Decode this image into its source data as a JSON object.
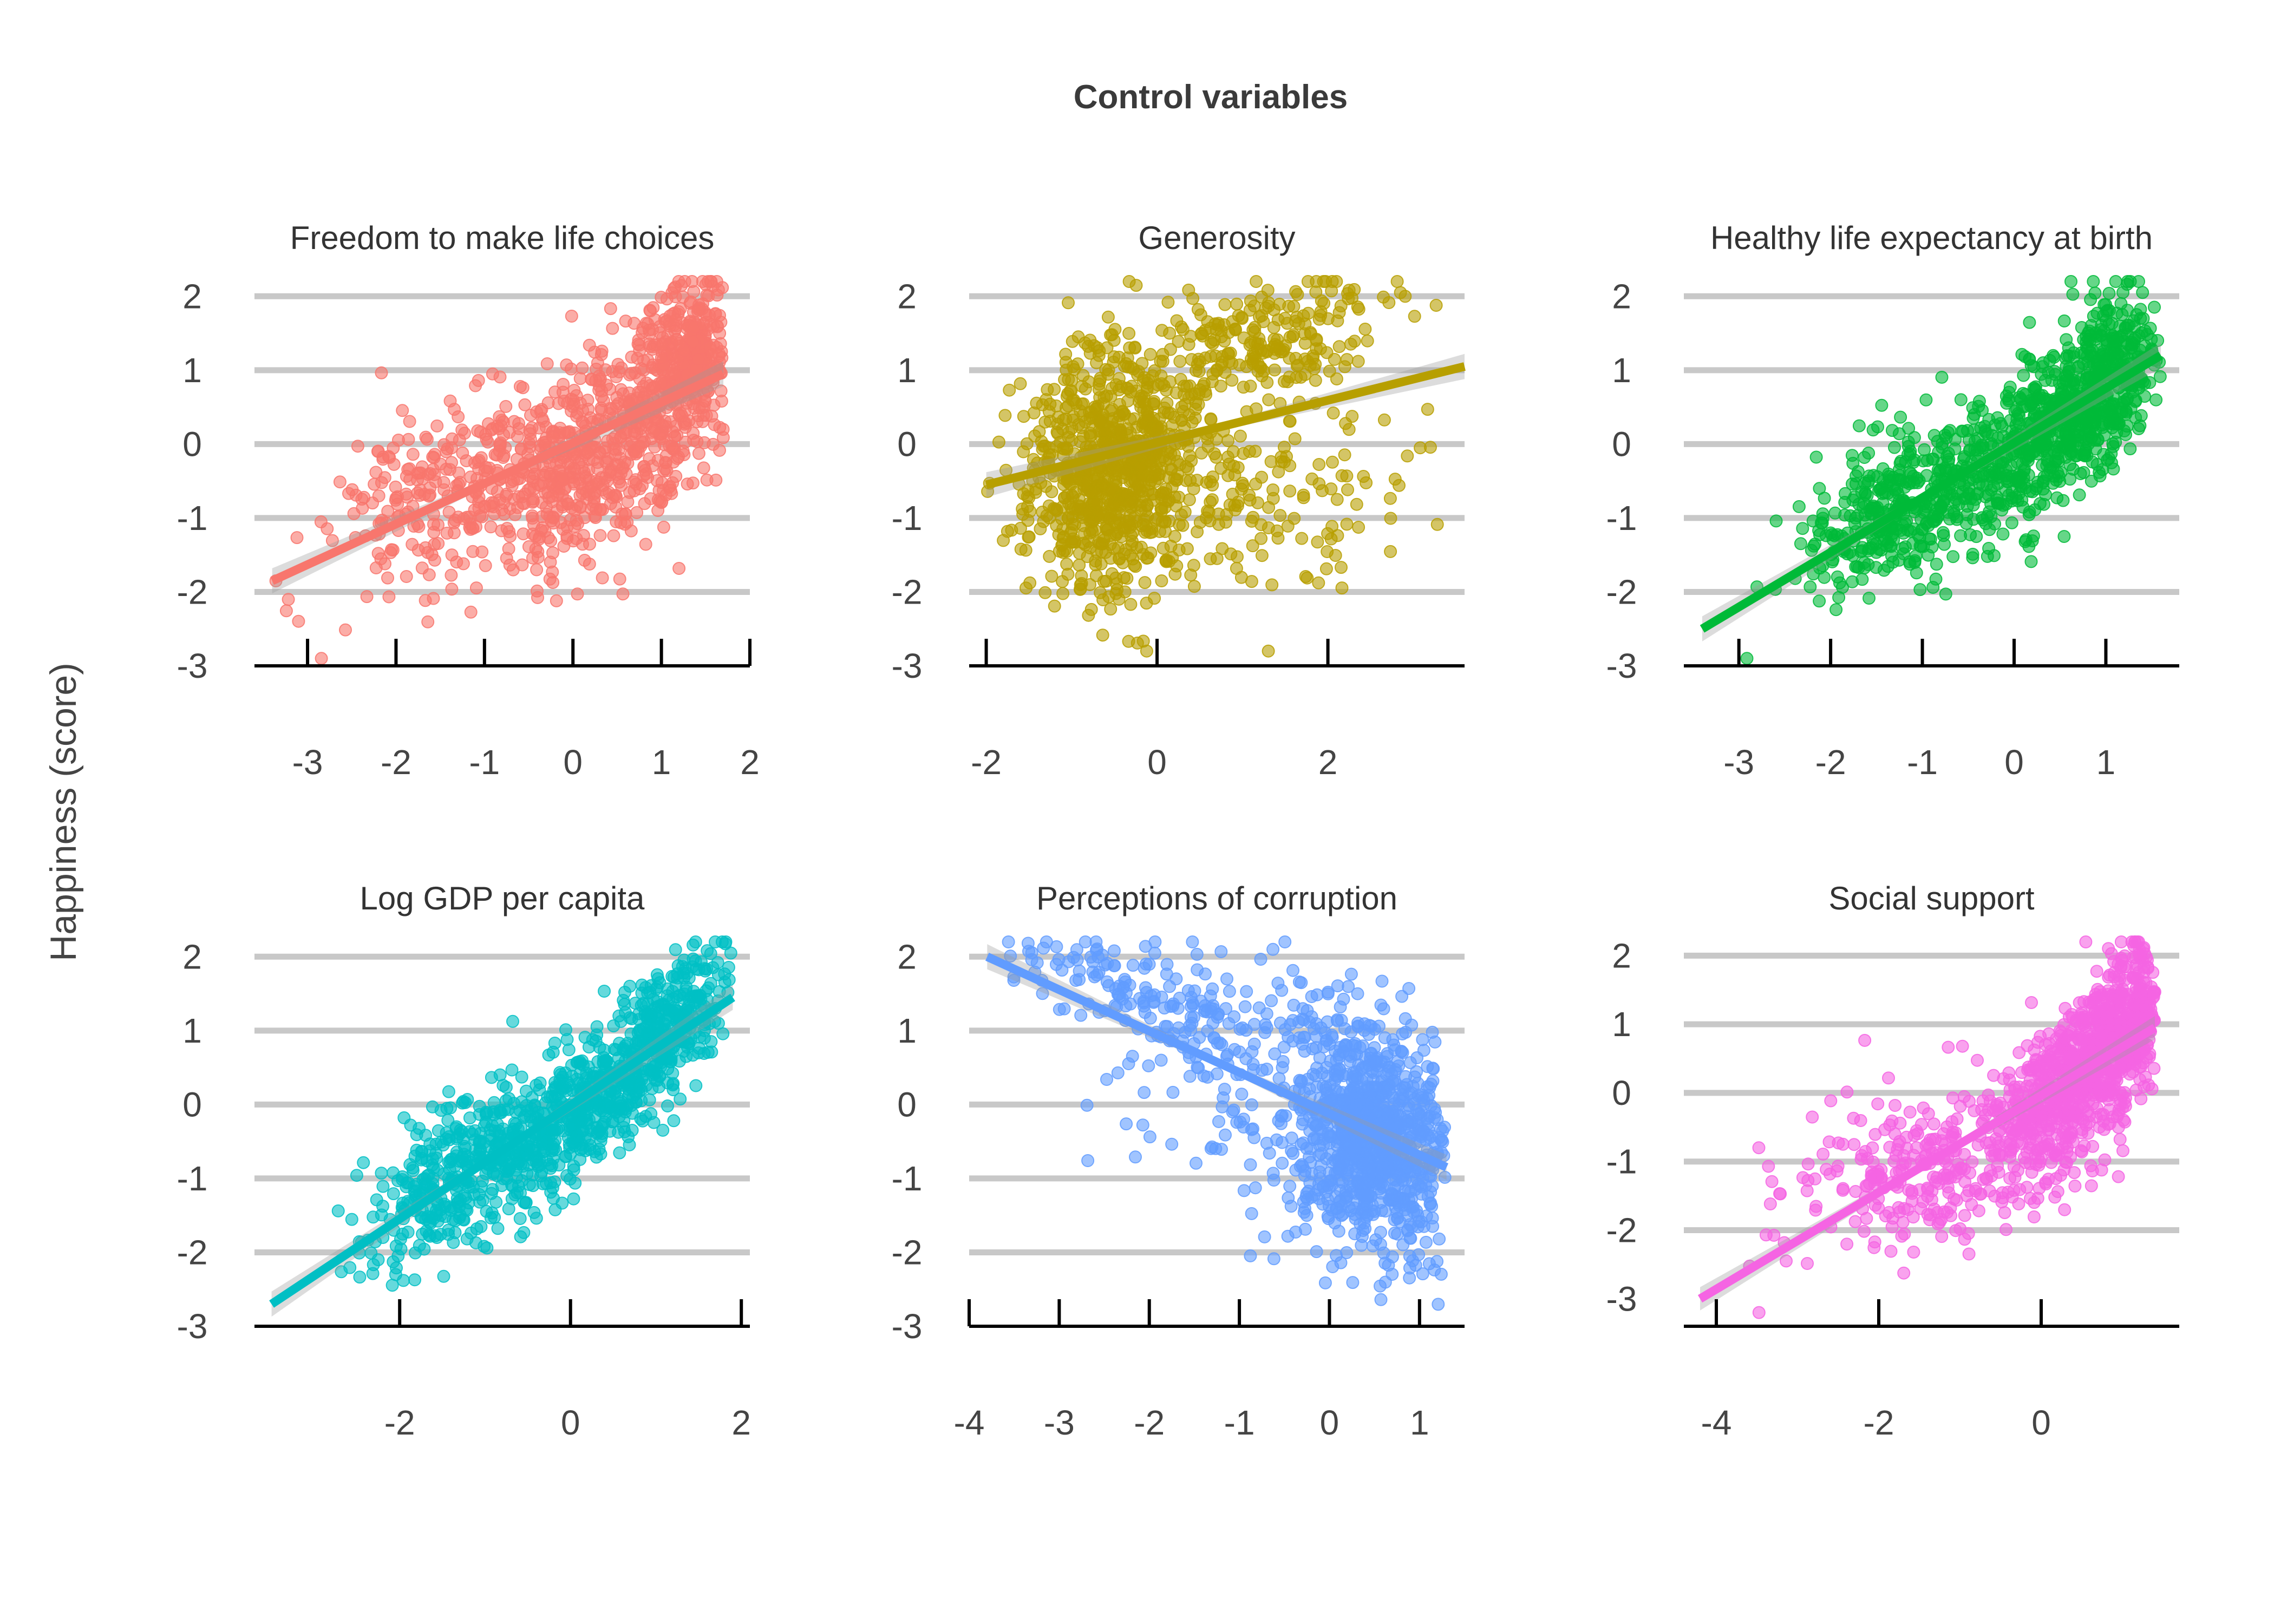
{
  "figure": {
    "title": "Control variables",
    "ylabel": "Happiness (score)"
  },
  "chart_data": [
    {
      "type": "scatter",
      "title": "Freedom to make life choices",
      "color": "#F8766D",
      "xlim": [
        -3.6,
        2.0
      ],
      "ylim": [
        -3,
        2.2
      ],
      "xticks": [
        -3,
        -2,
        -1,
        0,
        1,
        2
      ],
      "yticks": [
        -3,
        -2,
        -1,
        0,
        1,
        2
      ],
      "trend": {
        "x": [
          -3.4,
          1.7
        ],
        "y": [
          -1.85,
          0.95
        ]
      },
      "clusters": [
        {
          "n": 700,
          "cx": 0.4,
          "sx": 0.75,
          "slope": 0.55,
          "cy": 0.0,
          "sy": 0.65
        },
        {
          "n": 260,
          "cx": 1.35,
          "sx": 0.25,
          "slope": 0.4,
          "cy": 1.35,
          "sy": 0.4
        },
        {
          "n": 260,
          "cx": -1.3,
          "sx": 0.9,
          "slope": 0.35,
          "cy": -0.6,
          "sy": 0.65
        }
      ],
      "xrange": [
        -3.4,
        1.7
      ],
      "yrange": [
        -2.9,
        2.2
      ]
    },
    {
      "type": "scatter",
      "title": "Generosity",
      "color": "#B79F00",
      "xlim": [
        -2.2,
        3.6
      ],
      "ylim": [
        -3,
        2.2
      ],
      "xticks": [
        -2,
        0,
        2
      ],
      "yticks": [
        -3,
        -2,
        -1,
        0,
        1,
        2
      ],
      "trend": {
        "x": [
          -2.0,
          3.6
        ],
        "y": [
          -0.55,
          1.05
        ]
      },
      "clusters": [
        {
          "n": 850,
          "cx": -0.5,
          "sx": 0.55,
          "slope": 0.15,
          "cy": -0.35,
          "sy": 0.8
        },
        {
          "n": 220,
          "cx": 1.3,
          "sx": 0.7,
          "slope": 0.2,
          "cy": 1.4,
          "sy": 0.45
        },
        {
          "n": 180,
          "cx": 0.9,
          "sx": 1.0,
          "slope": 0.1,
          "cy": -0.6,
          "sy": 0.7
        }
      ],
      "xrange": [
        -2.0,
        3.6
      ],
      "yrange": [
        -2.8,
        2.2
      ]
    },
    {
      "type": "scatter",
      "title": "Healthy life expectancy at birth",
      "color": "#00BA38",
      "xlim": [
        -3.6,
        1.8
      ],
      "ylim": [
        -3,
        2.2
      ],
      "xticks": [
        -3,
        -2,
        -1,
        0,
        1
      ],
      "yticks": [
        -3,
        -2,
        -1,
        0,
        1,
        2
      ],
      "trend": {
        "x": [
          -3.4,
          1.6
        ],
        "y": [
          -2.5,
          1.2
        ]
      },
      "clusters": [
        {
          "n": 600,
          "cx": 0.4,
          "sx": 0.55,
          "slope": 0.8,
          "cy": 0.2,
          "sy": 0.5
        },
        {
          "n": 220,
          "cx": 1.05,
          "sx": 0.25,
          "slope": 0.9,
          "cy": 1.1,
          "sy": 0.55
        },
        {
          "n": 400,
          "cx": -1.2,
          "sx": 0.55,
          "slope": 0.6,
          "cy": -0.8,
          "sy": 0.5
        }
      ],
      "xrange": [
        -3.4,
        1.6
      ],
      "yrange": [
        -2.9,
        2.2
      ]
    },
    {
      "type": "scatter",
      "title": "Log GDP per capita",
      "color": "#00BFC4",
      "xlim": [
        -3.7,
        2.1
      ],
      "ylim": [
        -3,
        2.2
      ],
      "xticks": [
        -2,
        0,
        2
      ],
      "yticks": [
        -3,
        -2,
        -1,
        0,
        1,
        2
      ],
      "trend": {
        "x": [
          -3.5,
          1.9
        ],
        "y": [
          -2.7,
          1.45
        ]
      },
      "clusters": [
        {
          "n": 550,
          "cx": 0.2,
          "sx": 0.6,
          "slope": 0.75,
          "cy": 0.0,
          "sy": 0.45
        },
        {
          "n": 230,
          "cx": 1.2,
          "sx": 0.35,
          "slope": 0.7,
          "cy": 1.2,
          "sy": 0.4
        },
        {
          "n": 330,
          "cx": -1.4,
          "sx": 0.55,
          "slope": 0.7,
          "cy": -1.0,
          "sy": 0.5
        }
      ],
      "xrange": [
        -3.5,
        1.9
      ],
      "yrange": [
        -2.9,
        2.2
      ]
    },
    {
      "type": "scatter",
      "title": "Perceptions of corruption",
      "color": "#619CFF",
      "xlim": [
        -4.0,
        1.5
      ],
      "ylim": [
        -3,
        2.2
      ],
      "xticks": [
        -4,
        -3,
        -2,
        -1,
        0,
        1
      ],
      "yticks": [
        -3,
        -2,
        -1,
        0,
        1,
        2
      ],
      "trend": {
        "x": [
          -3.8,
          1.3
        ],
        "y": [
          2.0,
          -0.85
        ]
      },
      "clusters": [
        {
          "n": 950,
          "cx": 0.5,
          "sx": 0.4,
          "slope": -0.2,
          "cy": -0.45,
          "sy": 0.75
        },
        {
          "n": 160,
          "cx": -2.0,
          "sx": 0.9,
          "slope": -0.3,
          "cy": 1.45,
          "sy": 0.35
        },
        {
          "n": 180,
          "cx": -0.6,
          "sx": 0.8,
          "slope": -0.3,
          "cy": 0.3,
          "sy": 1.0
        }
      ],
      "xrange": [
        -3.9,
        1.3
      ],
      "yrange": [
        -2.8,
        2.2
      ]
    },
    {
      "type": "scatter",
      "title": "Social support",
      "color": "#F564E3",
      "xlim": [
        -4.4,
        1.7
      ],
      "ylim": [
        -3.4,
        2.2
      ],
      "xticks": [
        -4,
        -2,
        0
      ],
      "yticks": [
        -3,
        -2,
        -1,
        0,
        1,
        2
      ],
      "trend": {
        "x": [
          -4.2,
          1.4
        ],
        "y": [
          -3.0,
          0.95
        ]
      },
      "clusters": [
        {
          "n": 650,
          "cx": 0.45,
          "sx": 0.5,
          "slope": 0.9,
          "cy": 0.2,
          "sy": 0.6
        },
        {
          "n": 240,
          "cx": 1.1,
          "sx": 0.25,
          "slope": 1.0,
          "cy": 1.15,
          "sy": 0.5
        },
        {
          "n": 330,
          "cx": -1.3,
          "sx": 1.0,
          "slope": 0.35,
          "cy": -1.0,
          "sy": 0.55
        }
      ],
      "xrange": [
        -4.3,
        1.4
      ],
      "yrange": [
        -3.2,
        2.2
      ]
    }
  ]
}
